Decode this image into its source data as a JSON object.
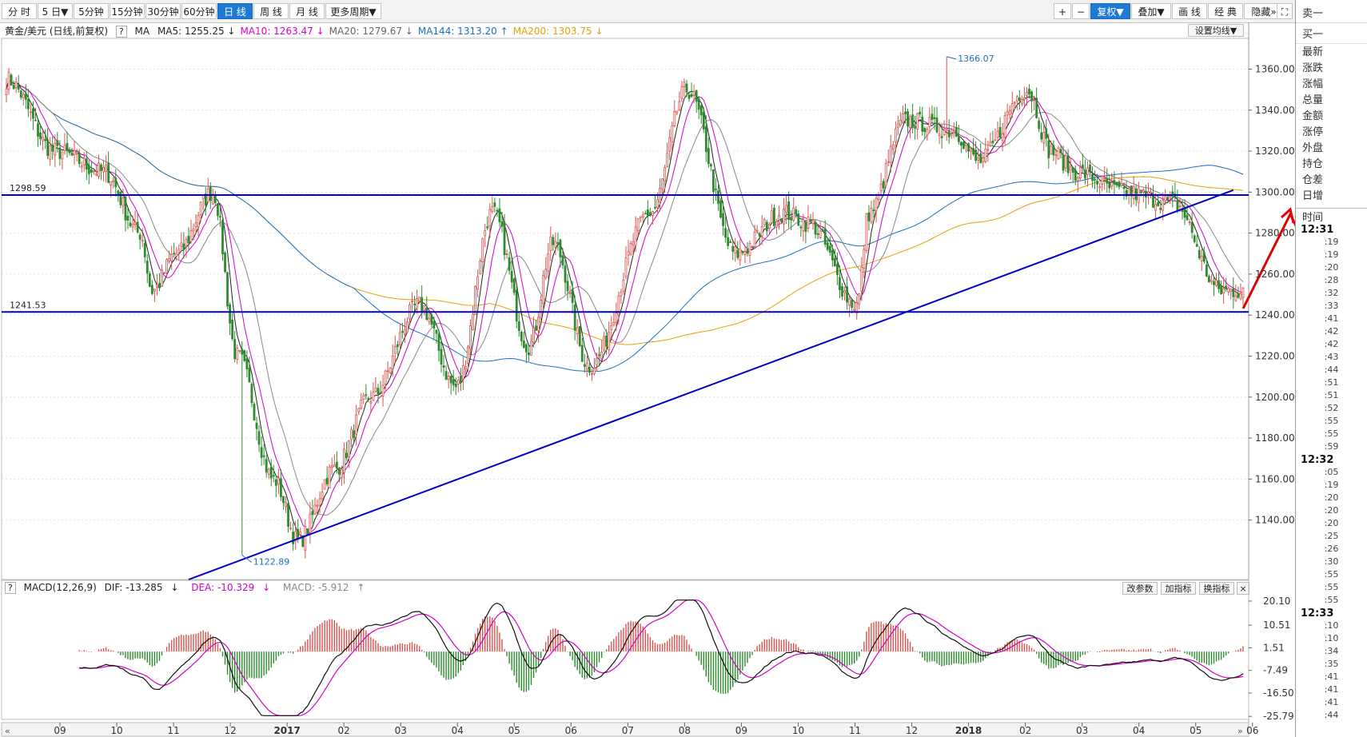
{
  "toolbar": {
    "periods": [
      {
        "label": "分 时"
      },
      {
        "label": "5 日▼"
      },
      {
        "label": "5分钟"
      },
      {
        "label": "15分钟"
      },
      {
        "label": "30分钟"
      },
      {
        "label": "60分钟"
      },
      {
        "label": "日 线",
        "active": true
      },
      {
        "label": "周 线"
      },
      {
        "label": "月 线"
      },
      {
        "label": "更多周期▼"
      }
    ],
    "right_buttons": [
      {
        "label": "+"
      },
      {
        "label": "−"
      },
      {
        "label": "复权▼",
        "active": true
      },
      {
        "label": "叠加▼"
      },
      {
        "label": "画 线"
      },
      {
        "label": "经 典"
      },
      {
        "label": "隐藏»"
      }
    ],
    "collapse_icon": "⛶"
  },
  "legend": {
    "symbol": "黄金/美元 (日线,前复权)",
    "help": "?",
    "ma_label": "MA",
    "items": [
      {
        "text": "MA5: 1255.25",
        "arrow": "↓",
        "color": "#222222"
      },
      {
        "text": "MA10: 1263.47",
        "arrow": "↓",
        "color": "#d200c8"
      },
      {
        "text": "MA20: 1279.67",
        "arrow": "↓",
        "color": "#666666"
      },
      {
        "text": "MA144: 1313.20",
        "arrow": "↑",
        "color": "#1a6fc4"
      },
      {
        "text": "MA200: 1303.75",
        "arrow": "↓",
        "color": "#e8a000"
      }
    ],
    "settings_button": "设置均线▼"
  },
  "macd_legend": {
    "help": "?",
    "name": "MACD(12,26,9)",
    "dif": "DIF: -13.285",
    "dif_arrow": "↓",
    "dea": "DEA: -10.329",
    "dea_arrow": "↓",
    "macd": "MACD: -5.912",
    "macd_arrow": "↑",
    "buttons": [
      "改参数",
      "加指标",
      "换指标",
      "×"
    ]
  },
  "colors": {
    "up": "#d9534f",
    "down": "#2e8b2e",
    "ma5": "#222222",
    "ma10": "#d200c8",
    "ma20": "#888888",
    "ma144": "#1a6fc4",
    "ma200": "#e8a000",
    "line": "#0000c8",
    "arrow": "#e00000"
  },
  "chart_data": [
    {
      "type": "candlestick",
      "title": "黄金/美元 (日线,前复权)",
      "y_axis": {
        "ticks": [
          1140,
          1160,
          1180,
          1200,
          1220,
          1240,
          1260,
          1280,
          1300,
          1320,
          1340,
          1360
        ],
        "ylim": [
          1111,
          1375
        ]
      },
      "x_axis": {
        "labels": [
          "09",
          "10",
          "11",
          "12",
          "2017",
          "02",
          "03",
          "04",
          "05",
          "06",
          "07",
          "08",
          "09",
          "10",
          "11",
          "12",
          "2018",
          "02",
          "03",
          "04",
          "05",
          "06"
        ]
      },
      "close_path": {
        "x_index": [
          0,
          20,
          40,
          55,
          60,
          70,
          85,
          95,
          110,
          120,
          135,
          150,
          170,
          185,
          200,
          215,
          225,
          240,
          265,
          280,
          300,
          320,
          330,
          350,
          355,
          370,
          390,
          400,
          420,
          430,
          440,
          460,
          480,
          500
        ],
        "close": [
          1355,
          1320,
          1310,
          1280,
          1252,
          1270,
          1300,
          1220,
          1160,
          1130,
          1165,
          1200,
          1245,
          1205,
          1290,
          1225,
          1275,
          1215,
          1290,
          1350,
          1270,
          1290,
          1285,
          1245,
          1290,
          1335,
          1330,
          1315,
          1350,
          1320,
          1310,
          1300,
          1295,
          1252
        ]
      },
      "horizontal_lines": [
        {
          "label": "1298.59",
          "value": 1298.59
        },
        {
          "label": "1241.53",
          "value": 1241.53
        }
      ],
      "trendline": {
        "from": {
          "x_index": 75,
          "value": 1111
        },
        "to": {
          "x_index": 505,
          "value": 1301
        }
      },
      "annotations": [
        {
          "text": "1366.07",
          "x_index": 387,
          "value": 1366.07,
          "kind": "high"
        },
        {
          "text": "1122.89",
          "x_index": 97,
          "value": 1122.89,
          "kind": "low"
        }
      ],
      "series": [
        {
          "name": "MA5",
          "value": 1255.25
        },
        {
          "name": "MA10",
          "value": 1263.47
        },
        {
          "name": "MA20",
          "value": 1279.67
        },
        {
          "name": "MA144",
          "value": 1313.2
        },
        {
          "name": "MA200",
          "value": 1303.75
        }
      ],
      "grid": true
    },
    {
      "type": "macd",
      "title": "MACD(12,26,9)",
      "y_axis": {
        "ticks": [
          "20.10",
          "10.51",
          "1.51",
          "-7.49",
          "-16.50",
          "-25.79"
        ],
        "ylim": [
          -27,
          22
        ]
      },
      "values": {
        "dif": -13.285,
        "dea": -10.329,
        "macd": -5.912
      }
    }
  ],
  "side_panel": {
    "sell": "卖一",
    "buy": "买一",
    "fields": [
      "最新",
      "涨跌",
      "涨幅",
      "总量",
      "金额",
      "涨停",
      "外盘",
      "持仓",
      "仓差",
      "日增"
    ],
    "time_header": "时间",
    "ticks": [
      {
        "t": "12:31",
        "hour": true
      },
      {
        "t": ":19"
      },
      {
        "t": ":19"
      },
      {
        "t": ":20"
      },
      {
        "t": ":28"
      },
      {
        "t": ":32"
      },
      {
        "t": ":33"
      },
      {
        "t": ":41"
      },
      {
        "t": ":42"
      },
      {
        "t": ":42"
      },
      {
        "t": ":43"
      },
      {
        "t": ":44"
      },
      {
        "t": ":51"
      },
      {
        "t": ":51"
      },
      {
        "t": ":52"
      },
      {
        "t": ":55"
      },
      {
        "t": ":55"
      },
      {
        "t": ":59"
      },
      {
        "t": "12:32",
        "hour": true
      },
      {
        "t": ":05"
      },
      {
        "t": ":19"
      },
      {
        "t": ":20"
      },
      {
        "t": ":20"
      },
      {
        "t": ":20"
      },
      {
        "t": ":25"
      },
      {
        "t": ":26"
      },
      {
        "t": ":30"
      },
      {
        "t": ":55"
      },
      {
        "t": ":55"
      },
      {
        "t": ":55"
      },
      {
        "t": "12:33",
        "hour": true
      },
      {
        "t": ":10"
      },
      {
        "t": ":10"
      },
      {
        "t": ":34"
      },
      {
        "t": ":35"
      },
      {
        "t": ":41"
      },
      {
        "t": ":41"
      },
      {
        "t": ":41"
      },
      {
        "t": ":44"
      }
    ]
  }
}
